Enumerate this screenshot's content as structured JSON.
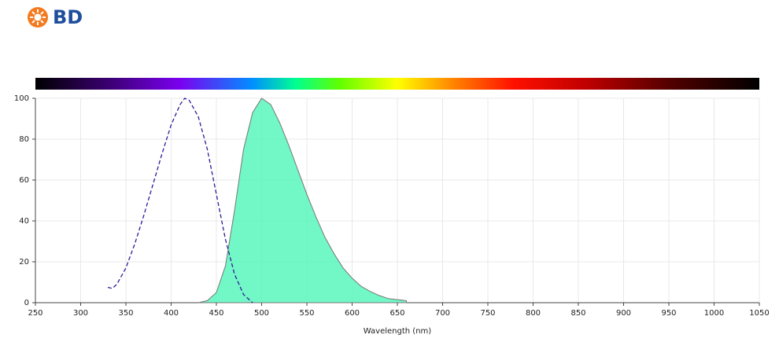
{
  "logo": {
    "text": "BD"
  },
  "chart_data": {
    "type": "line",
    "xlabel": "Wavelength (nm)",
    "xlim": [
      250,
      1050
    ],
    "xticks": [
      250,
      300,
      350,
      400,
      450,
      500,
      550,
      600,
      650,
      700,
      750,
      800,
      850,
      900,
      950,
      1000,
      1050
    ],
    "ylim": [
      0,
      100
    ],
    "yticks": [
      0,
      20,
      40,
      60,
      80,
      100
    ],
    "grid": true,
    "series": [
      {
        "type": "line",
        "dashed": true,
        "color": "#2e1a98",
        "x": [
          330,
          335,
          340,
          350,
          360,
          370,
          380,
          390,
          400,
          410,
          415,
          420,
          430,
          440,
          450,
          460,
          470,
          480,
          490
        ],
        "values": [
          7.5,
          7,
          9,
          17,
          29,
          43,
          58,
          73,
          87,
          97,
          100,
          99,
          91,
          75,
          53,
          31,
          14,
          4,
          0
        ]
      },
      {
        "type": "area",
        "color": "#4ff5b8",
        "x": [
          430,
          440,
          450,
          460,
          470,
          480,
          490,
          500,
          510,
          520,
          530,
          540,
          550,
          560,
          570,
          580,
          590,
          600,
          610,
          620,
          630,
          640,
          650,
          660
        ],
        "values": [
          0,
          1,
          5,
          18,
          45,
          75,
          93,
          100,
          97,
          88,
          77,
          65,
          53,
          42,
          32,
          24,
          17,
          12,
          8,
          5.5,
          3.5,
          2,
          1.5,
          1
        ]
      }
    ]
  }
}
